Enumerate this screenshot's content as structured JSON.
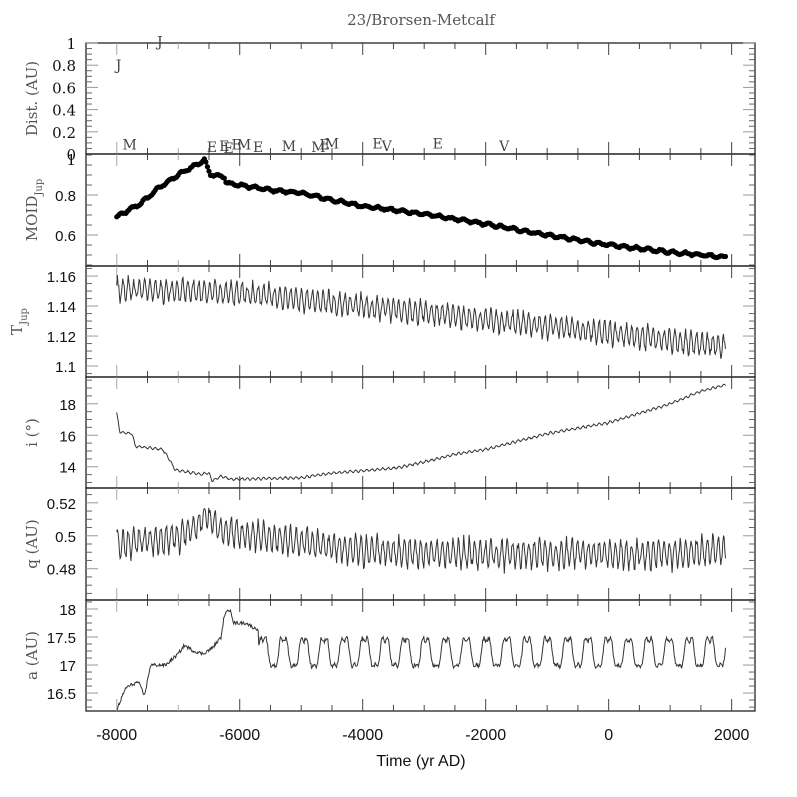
{
  "chart_data": {
    "type": "line",
    "title": "23/Brorsen-Metcalf",
    "xlabel": "Time (yr AD)",
    "xlim": [
      -8500,
      2380
    ],
    "xticks": [
      -8000,
      -6000,
      -4000,
      -2000,
      0,
      2000
    ],
    "xtick_labels": [
      "-8000",
      "-6000",
      "-4000",
      "-2000",
      "0",
      "2000"
    ],
    "grid": false,
    "legend": "none",
    "panels": [
      {
        "id": "dist",
        "ylabel": "Dist. (AU)",
        "ylim": [
          0,
          1
        ],
        "yticks": [
          0,
          0.2,
          0.4,
          0.6,
          0.8,
          1
        ],
        "ytick_labels": [
          "0",
          "0.2",
          "0.4",
          "0.6",
          "0.8",
          "1"
        ],
        "type": "encounters",
        "encounters": [
          {
            "planet": "J",
            "year": -7970,
            "dist": 0.75
          },
          {
            "planet": "J",
            "year": -7300,
            "dist": 0.96
          },
          {
            "planet": "M",
            "year": -7790,
            "dist": 0.03
          },
          {
            "planet": "E",
            "year": -6450,
            "dist": 0.01
          },
          {
            "planet": "E",
            "year": -6250,
            "dist": 0.02
          },
          {
            "planet": "E",
            "year": -6180,
            "dist": 0.0
          },
          {
            "planet": "E",
            "year": -6050,
            "dist": 0.03
          },
          {
            "planet": "M",
            "year": -5930,
            "dist": 0.03
          },
          {
            "planet": "E",
            "year": -5700,
            "dist": 0.01
          },
          {
            "planet": "M",
            "year": -5200,
            "dist": 0.02
          },
          {
            "planet": "M",
            "year": -4720,
            "dist": 0.01
          },
          {
            "planet": "E",
            "year": -4620,
            "dist": 0.03
          },
          {
            "planet": "M",
            "year": -4500,
            "dist": 0.04
          },
          {
            "planet": "E",
            "year": -3760,
            "dist": 0.04
          },
          {
            "planet": "V",
            "year": -3610,
            "dist": 0.02
          },
          {
            "planet": "E",
            "year": -2780,
            "dist": 0.04
          },
          {
            "planet": "V",
            "year": -1700,
            "dist": 0.02
          }
        ]
      },
      {
        "id": "moid",
        "ylabel": "MOID",
        "ylabel_sub": "Jup",
        "ylim": [
          0.445,
          1.005
        ],
        "yticks": [
          0.6,
          0.8
        ],
        "ytick_labels": [
          "0.6",
          "0.8"
        ],
        "top_label": "1",
        "type": "scatter",
        "trend": [
          [
            -8000,
            0.69
          ],
          [
            -7600,
            0.76
          ],
          [
            -7300,
            0.84
          ],
          [
            -6950,
            0.91
          ],
          [
            -6570,
            0.975
          ],
          [
            -6480,
            0.905
          ],
          [
            -6250,
            0.89
          ],
          [
            -6220,
            0.86
          ],
          [
            -5500,
            0.825
          ],
          [
            -5000,
            0.81
          ],
          [
            -4500,
            0.775
          ],
          [
            -4000,
            0.745
          ],
          [
            -3000,
            0.705
          ],
          [
            -2000,
            0.655
          ],
          [
            -1000,
            0.6
          ],
          [
            0,
            0.55
          ],
          [
            1000,
            0.515
          ],
          [
            1900,
            0.49
          ]
        ],
        "wiggle": {
          "amplitude": 0.006,
          "period": 200
        },
        "step": 25
      },
      {
        "id": "tjup",
        "ylabel": "T",
        "ylabel_sub": "Jup",
        "ylim": [
          1.0927,
          1.1667
        ],
        "yticks": [
          1.1,
          1.12,
          1.14,
          1.16
        ],
        "ytick_labels": [
          "1.1",
          "1.12",
          "1.14",
          "1.16"
        ],
        "type": "line",
        "trend": [
          [
            -8000,
            1.151
          ],
          [
            -6000,
            1.149
          ],
          [
            -4000,
            1.14
          ],
          [
            -2000,
            1.131
          ],
          [
            0,
            1.122
          ],
          [
            1900,
            1.113
          ]
        ],
        "wiggle": {
          "amplitude": 0.0075,
          "period": 88
        },
        "step": 11
      },
      {
        "id": "incl",
        "ylabel": "i (°)",
        "ylim": [
          12.65,
          19.7
        ],
        "yticks": [
          14,
          16,
          18
        ],
        "ytick_labels": [
          "14",
          "16",
          "18"
        ],
        "type": "line",
        "trend": [
          [
            -8000,
            17.4
          ],
          [
            -7950,
            16.2
          ],
          [
            -7750,
            16.1
          ],
          [
            -7700,
            15.3
          ],
          [
            -7250,
            15.1
          ],
          [
            -7150,
            14.5
          ],
          [
            -7050,
            13.8
          ],
          [
            -6750,
            13.6
          ],
          [
            -6650,
            13.5
          ],
          [
            -6500,
            13.6
          ],
          [
            -6450,
            13.1
          ],
          [
            -6300,
            13.4
          ],
          [
            -6150,
            13.2
          ],
          [
            -5000,
            13.3
          ],
          [
            -4500,
            13.6
          ],
          [
            -3500,
            13.9
          ],
          [
            -3000,
            14.3
          ],
          [
            -2500,
            14.8
          ],
          [
            -2000,
            15.1
          ],
          [
            -1500,
            15.6
          ],
          [
            -1000,
            16.1
          ],
          [
            0,
            16.8
          ],
          [
            500,
            17.4
          ],
          [
            1000,
            18.0
          ],
          [
            1500,
            18.8
          ],
          [
            1900,
            19.2
          ]
        ],
        "wiggle": {
          "amplitude": 0.08,
          "period": 88
        },
        "step": 11
      },
      {
        "id": "q",
        "ylabel": "q (AU)",
        "ylim": [
          0.461,
          0.529
        ],
        "yticks": [
          0.48,
          0.5,
          0.52
        ],
        "ytick_labels": [
          "0.48",
          "0.5",
          "0.52"
        ],
        "type": "line",
        "trend": [
          [
            -8000,
            0.495
          ],
          [
            -7000,
            0.499
          ],
          [
            -6700,
            0.506
          ],
          [
            -6550,
            0.513
          ],
          [
            -6300,
            0.503
          ],
          [
            -5500,
            0.499
          ],
          [
            -4500,
            0.493
          ],
          [
            -3500,
            0.49
          ],
          [
            -2500,
            0.489
          ],
          [
            -1500,
            0.489
          ],
          [
            0,
            0.489
          ],
          [
            1000,
            0.489
          ],
          [
            1900,
            0.491
          ]
        ],
        "wiggle": {
          "amplitude": 0.0085,
          "period": 88
        },
        "step": 11
      },
      {
        "id": "a",
        "ylabel": "a (AU)",
        "ylim": [
          16.18,
          18.16
        ],
        "yticks": [
          16.5,
          17,
          17.5,
          18
        ],
        "ytick_labels": [
          "16.5",
          "17",
          "17.5",
          "18"
        ],
        "type": "line",
        "trend": [
          [
            -8000,
            16.2
          ],
          [
            -7850,
            16.6
          ],
          [
            -7650,
            16.7
          ],
          [
            -7550,
            16.45
          ],
          [
            -7450,
            17.0
          ],
          [
            -7200,
            17.0
          ],
          [
            -7000,
            17.2
          ],
          [
            -6900,
            17.35
          ],
          [
            -6750,
            17.25
          ],
          [
            -6600,
            17.2
          ],
          [
            -6450,
            17.3
          ],
          [
            -6300,
            17.5
          ],
          [
            -6250,
            17.9
          ],
          [
            -6150,
            18.0
          ],
          [
            -6100,
            17.75
          ],
          [
            -5900,
            17.75
          ],
          [
            -5750,
            17.65
          ]
        ],
        "periodic": {
          "start": -5700,
          "end": 1900,
          "mean": 17.2,
          "amplitude": 0.3,
          "period": 330
        },
        "step": 11
      }
    ]
  }
}
